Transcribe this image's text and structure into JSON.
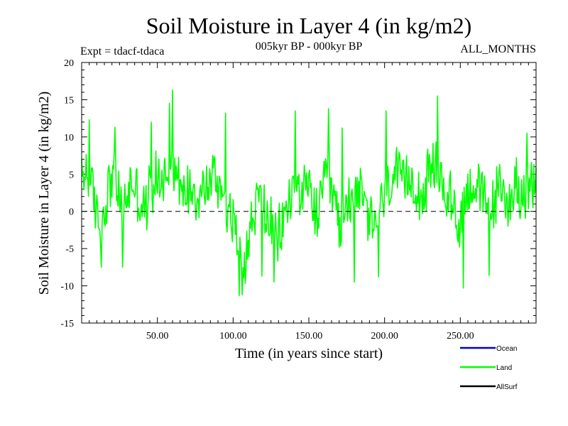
{
  "chart_data": {
    "type": "line",
    "title": "Soil Moisture in Layer 4 (in kg/m2)",
    "subtitle": "005kyr BP - 000kyr BP",
    "experiment": "Expt = tdacf-tdaca",
    "period": "ALL_MONTHS",
    "xlabel": "Time (in years since start)",
    "ylabel": "Soil Moisture in Layer 4 (in kg/m2)",
    "xlim": [
      0,
      300
    ],
    "ylim": [
      -15,
      20
    ],
    "x_ticks": [
      50,
      100,
      150,
      200,
      250
    ],
    "x_tick_labels": [
      "50.00",
      "100.00",
      "150.00",
      "200.00",
      "250.00"
    ],
    "y_ticks": [
      -15,
      -10,
      -5,
      0,
      5,
      10,
      15,
      20
    ],
    "y_tick_labels": [
      "-15",
      "-10",
      "-5",
      "0",
      "5",
      "10",
      "15",
      "20"
    ],
    "zero_line": 0,
    "legend_position": "bottom-right",
    "legend": [
      {
        "name": "Ocean",
        "color": "#0000cc"
      },
      {
        "name": "Land",
        "color": "#00ff00"
      },
      {
        "name": "AllSurf",
        "color": "#000000"
      }
    ],
    "series": [
      {
        "name": "Land",
        "color": "#00ff00",
        "x_start": 0,
        "x_step": 0.5,
        "anchors": [
          {
            "x": 0,
            "y": 4
          },
          {
            "x": 3,
            "y": 6
          },
          {
            "x": 6,
            "y": 3
          },
          {
            "x": 9,
            "y": 1
          },
          {
            "x": 12,
            "y": -2
          },
          {
            "x": 15,
            "y": 0
          },
          {
            "x": 18,
            "y": 4
          },
          {
            "x": 21,
            "y": 5
          },
          {
            "x": 24,
            "y": 3
          },
          {
            "x": 27,
            "y": -1
          },
          {
            "x": 30,
            "y": 2
          },
          {
            "x": 33,
            "y": 4
          },
          {
            "x": 36,
            "y": 3
          },
          {
            "x": 39,
            "y": 1
          },
          {
            "x": 42,
            "y": 0
          },
          {
            "x": 45,
            "y": 3
          },
          {
            "x": 48,
            "y": 4
          },
          {
            "x": 51,
            "y": 5
          },
          {
            "x": 54,
            "y": 4
          },
          {
            "x": 57,
            "y": 6
          },
          {
            "x": 60,
            "y": 7
          },
          {
            "x": 63,
            "y": 5
          },
          {
            "x": 66,
            "y": 2
          },
          {
            "x": 69,
            "y": 3
          },
          {
            "x": 72,
            "y": 4
          },
          {
            "x": 75,
            "y": 3
          },
          {
            "x": 78,
            "y": 2
          },
          {
            "x": 81,
            "y": 3
          },
          {
            "x": 84,
            "y": 4
          },
          {
            "x": 87,
            "y": 5
          },
          {
            "x": 90,
            "y": 4
          },
          {
            "x": 93,
            "y": 3
          },
          {
            "x": 96,
            "y": 1
          },
          {
            "x": 99,
            "y": -1
          },
          {
            "x": 102,
            "y": -3
          },
          {
            "x": 105,
            "y": -5
          },
          {
            "x": 108,
            "y": -6
          },
          {
            "x": 111,
            "y": -3
          },
          {
            "x": 114,
            "y": 0
          },
          {
            "x": 117,
            "y": 2
          },
          {
            "x": 120,
            "y": 1
          },
          {
            "x": 123,
            "y": -1
          },
          {
            "x": 126,
            "y": -3
          },
          {
            "x": 129,
            "y": -4
          },
          {
            "x": 132,
            "y": -2
          },
          {
            "x": 135,
            "y": 0
          },
          {
            "x": 138,
            "y": 2
          },
          {
            "x": 141,
            "y": 4
          },
          {
            "x": 144,
            "y": 3
          },
          {
            "x": 147,
            "y": 2
          },
          {
            "x": 150,
            "y": 3
          },
          {
            "x": 153,
            "y": 1
          },
          {
            "x": 156,
            "y": -1
          },
          {
            "x": 159,
            "y": 2
          },
          {
            "x": 162,
            "y": 5
          },
          {
            "x": 165,
            "y": 3
          },
          {
            "x": 168,
            "y": 0
          },
          {
            "x": 171,
            "y": -2
          },
          {
            "x": 174,
            "y": 0
          },
          {
            "x": 177,
            "y": 2
          },
          {
            "x": 180,
            "y": 4
          },
          {
            "x": 183,
            "y": 3
          },
          {
            "x": 186,
            "y": 1
          },
          {
            "x": 189,
            "y": -1
          },
          {
            "x": 192,
            "y": -2
          },
          {
            "x": 195,
            "y": -1
          },
          {
            "x": 198,
            "y": 1
          },
          {
            "x": 201,
            "y": 2
          },
          {
            "x": 204,
            "y": 4
          },
          {
            "x": 207,
            "y": 5
          },
          {
            "x": 210,
            "y": 4
          },
          {
            "x": 213,
            "y": 3
          },
          {
            "x": 216,
            "y": 4
          },
          {
            "x": 219,
            "y": 5
          },
          {
            "x": 222,
            "y": 3
          },
          {
            "x": 225,
            "y": 2
          },
          {
            "x": 228,
            "y": 4
          },
          {
            "x": 231,
            "y": 5
          },
          {
            "x": 234,
            "y": 6
          },
          {
            "x": 237,
            "y": 4
          },
          {
            "x": 240,
            "y": 3
          },
          {
            "x": 243,
            "y": 2
          },
          {
            "x": 246,
            "y": 0
          },
          {
            "x": 249,
            "y": -2
          },
          {
            "x": 252,
            "y": 1
          },
          {
            "x": 255,
            "y": 3
          },
          {
            "x": 258,
            "y": 4
          },
          {
            "x": 261,
            "y": 3
          },
          {
            "x": 264,
            "y": 2
          },
          {
            "x": 267,
            "y": 1
          },
          {
            "x": 270,
            "y": 0
          },
          {
            "x": 273,
            "y": 2
          },
          {
            "x": 276,
            "y": 3
          },
          {
            "x": 279,
            "y": 2
          },
          {
            "x": 282,
            "y": 1
          },
          {
            "x": 285,
            "y": 3
          },
          {
            "x": 288,
            "y": 4
          },
          {
            "x": 291,
            "y": 2
          },
          {
            "x": 294,
            "y": 1
          },
          {
            "x": 297,
            "y": 3
          },
          {
            "x": 300,
            "y": 4
          }
        ],
        "noise_amplitude": 4.5,
        "extremes": [
          {
            "x": 60,
            "y": 16.3
          },
          {
            "x": 58,
            "y": 14.5
          },
          {
            "x": 27,
            "y": -7.5
          },
          {
            "x": 13,
            "y": -7.5
          },
          {
            "x": 104,
            "y": -11.3
          },
          {
            "x": 106,
            "y": -11.2
          },
          {
            "x": 108,
            "y": -9.7
          },
          {
            "x": 127,
            "y": -9.5
          },
          {
            "x": 119,
            "y": -8.7
          },
          {
            "x": 163,
            "y": 13.8
          },
          {
            "x": 180,
            "y": -9.5
          },
          {
            "x": 196,
            "y": -8.8
          },
          {
            "x": 201,
            "y": 13.5
          },
          {
            "x": 235,
            "y": 15.5
          },
          {
            "x": 252,
            "y": -10.3
          },
          {
            "x": 269,
            "y": -8.6
          },
          {
            "x": 5,
            "y": 12.3
          },
          {
            "x": 22,
            "y": 11.3
          },
          {
            "x": 46,
            "y": 12.0
          },
          {
            "x": 95,
            "y": 13.2
          },
          {
            "x": 141,
            "y": 13.5
          },
          {
            "x": 172,
            "y": 11.2
          },
          {
            "x": 294,
            "y": 10.5
          }
        ]
      }
    ]
  }
}
